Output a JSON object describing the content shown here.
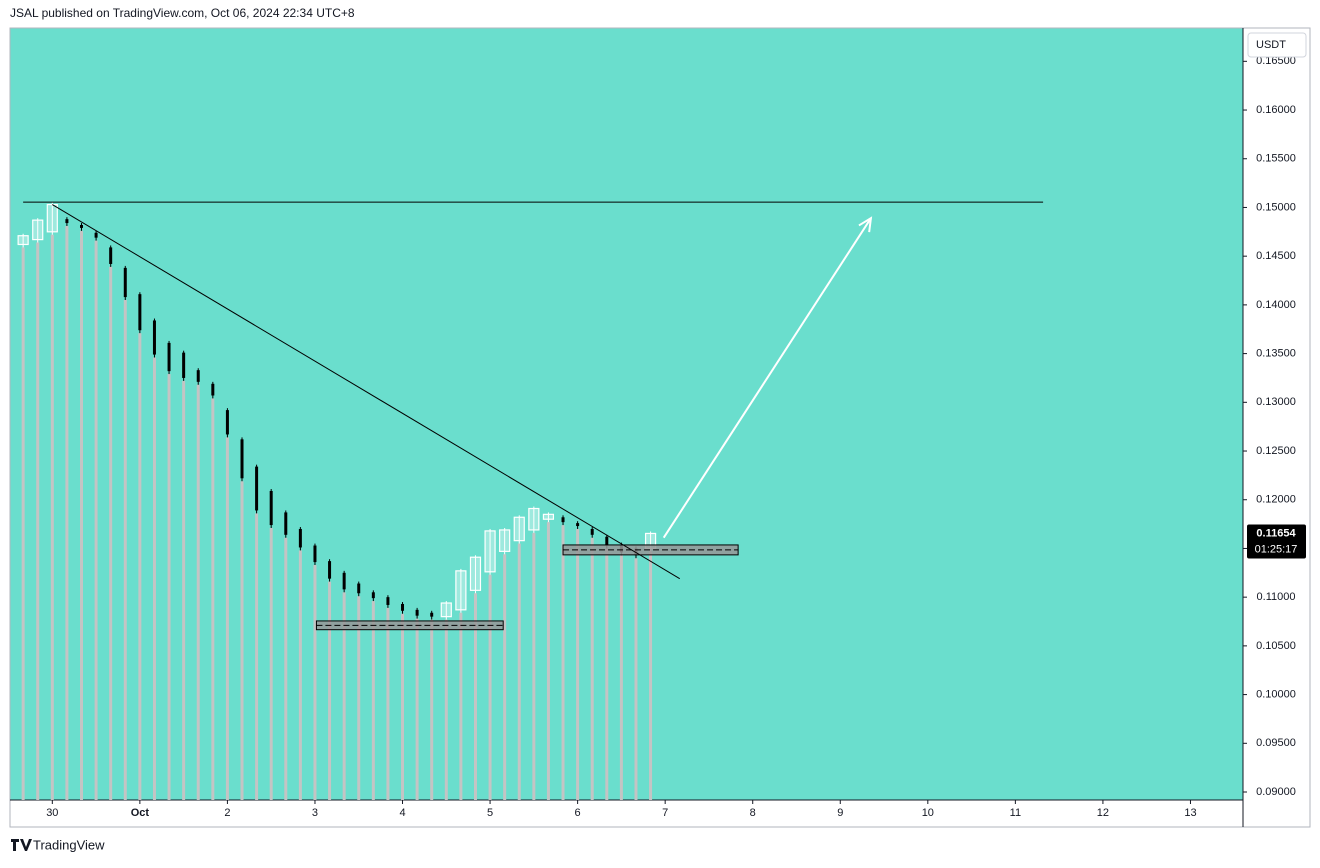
{
  "header": "JSAL published on TradingView.com, Oct 06, 2024 22:34 UTC+8",
  "footer": "TradingView",
  "chart_data": {
    "type": "candlestick",
    "currency": "USDT",
    "open": [
      0.1462,
      0.1467,
      0.1475,
      0.1488,
      0.1482,
      0.1474,
      0.1459,
      0.1438,
      0.1411,
      0.1384,
      0.1361,
      0.1351,
      0.1333,
      0.1319,
      0.1292,
      0.1262,
      0.1234,
      0.1209,
      0.1187,
      0.117,
      0.1153,
      0.1137,
      0.1125,
      0.1114,
      0.1105,
      0.11,
      0.1093,
      0.1087,
      0.1084,
      0.108,
      0.1087,
      0.1107,
      0.1126,
      0.1147,
      0.1158,
      0.1169,
      0.118,
      0.1182,
      0.1176,
      0.117,
      0.1162,
      0.1154,
      0.115,
      0.115
    ],
    "high": [
      0.1473,
      0.1489,
      0.1505,
      0.149,
      0.1484,
      0.1476,
      0.1461,
      0.144,
      0.1413,
      0.1386,
      0.1363,
      0.1353,
      0.1335,
      0.1321,
      0.1294,
      0.1264,
      0.1236,
      0.1211,
      0.1189,
      0.1172,
      0.1155,
      0.1139,
      0.1127,
      0.1116,
      0.1107,
      0.1102,
      0.1095,
      0.1089,
      0.1086,
      0.1096,
      0.1129,
      0.1143,
      0.117,
      0.1171,
      0.1184,
      0.1193,
      0.1187,
      0.1184,
      0.1178,
      0.1172,
      0.1164,
      0.1156,
      0.1152,
      0.11674
    ],
    "low": [
      0.1459,
      0.1464,
      0.1472,
      0.1481,
      0.1476,
      0.1466,
      0.1439,
      0.1405,
      0.1371,
      0.1346,
      0.1329,
      0.1322,
      0.1318,
      0.1304,
      0.1264,
      0.1219,
      0.1186,
      0.1171,
      0.1161,
      0.1148,
      0.1133,
      0.1116,
      0.1105,
      0.1101,
      0.1096,
      0.1089,
      0.1083,
      0.1078,
      0.1077,
      0.1077,
      0.1084,
      0.1104,
      0.1123,
      0.1144,
      0.1155,
      0.1166,
      0.1177,
      0.1174,
      0.117,
      0.1161,
      0.115,
      0.1143,
      0.114,
      0.1147
    ],
    "close": [
      0.1471,
      0.1487,
      0.1503,
      0.1484,
      0.1479,
      0.1469,
      0.1442,
      0.1408,
      0.1374,
      0.1349,
      0.1332,
      0.1325,
      0.1321,
      0.1307,
      0.1267,
      0.1222,
      0.1189,
      0.1174,
      0.1164,
      0.1151,
      0.1136,
      0.1119,
      0.1108,
      0.1104,
      0.1099,
      0.1092,
      0.1086,
      0.1081,
      0.108,
      0.1094,
      0.1127,
      0.1141,
      0.1168,
      0.1169,
      0.1182,
      0.1191,
      0.1185,
      0.1177,
      0.1173,
      0.1164,
      0.1153,
      0.1146,
      0.1143,
      0.11654
    ],
    "last_price": 0.11654,
    "countdown": "01:25:17",
    "xlim": [
      -0.9,
      83.6
    ],
    "xticks": [
      {
        "value": 2,
        "label": "30"
      },
      {
        "value": 8,
        "label": "Oct"
      },
      {
        "value": 14,
        "label": "2"
      },
      {
        "value": 20,
        "label": "3"
      },
      {
        "value": 26,
        "label": "4"
      },
      {
        "value": 32,
        "label": "5"
      },
      {
        "value": 38,
        "label": "6"
      },
      {
        "value": 44,
        "label": "7"
      },
      {
        "value": 50,
        "label": "8"
      },
      {
        "value": 56,
        "label": "9"
      },
      {
        "value": 62,
        "label": "10"
      },
      {
        "value": 68,
        "label": "11"
      },
      {
        "value": 74,
        "label": "12"
      },
      {
        "value": 80,
        "label": "13"
      }
    ],
    "ylim": [
      0.08918,
      0.16842
    ],
    "yticks": [
      {
        "value": 0.09,
        "label": "0.09000"
      },
      {
        "value": 0.095,
        "label": "0.09500"
      },
      {
        "value": 0.1,
        "label": "0.10000"
      },
      {
        "value": 0.105,
        "label": "0.10500"
      },
      {
        "value": 0.11,
        "label": "0.11000"
      },
      {
        "value": 0.115,
        "label": "0.11500"
      },
      {
        "value": 0.12,
        "label": "0.12000"
      },
      {
        "value": 0.125,
        "label": "0.12500"
      },
      {
        "value": 0.13,
        "label": "0.13000"
      },
      {
        "value": 0.135,
        "label": "0.13500"
      },
      {
        "value": 0.14,
        "label": "0.14000"
      },
      {
        "value": 0.145,
        "label": "0.14500"
      },
      {
        "value": 0.15,
        "label": "0.15000"
      },
      {
        "value": 0.155,
        "label": "0.15500"
      },
      {
        "value": 0.16,
        "label": "0.16000"
      },
      {
        "value": 0.165,
        "label": "0.16500"
      }
    ],
    "background": "#6adecd",
    "bear_color": "#000000",
    "bull_color": "#ffffff",
    "stem_color": "#c4c4c4",
    "trend_lines": [
      {
        "x": [
          0,
          69.9
        ],
        "y": [
          0.15055,
          0.15055
        ]
      },
      {
        "x": [
          2,
          45
        ],
        "y": [
          0.1503,
          0.1119
        ]
      }
    ],
    "zones": [
      {
        "x": [
          20.1,
          32.9
        ],
        "y": [
          0.10666,
          0.10756
        ]
      },
      {
        "x": [
          37,
          49
        ],
        "y": [
          0.11434,
          0.11536
        ]
      }
    ],
    "arrow": {
      "x": [
        43.9,
        58.1
      ],
      "y": [
        0.1161,
        0.1489
      ]
    }
  }
}
